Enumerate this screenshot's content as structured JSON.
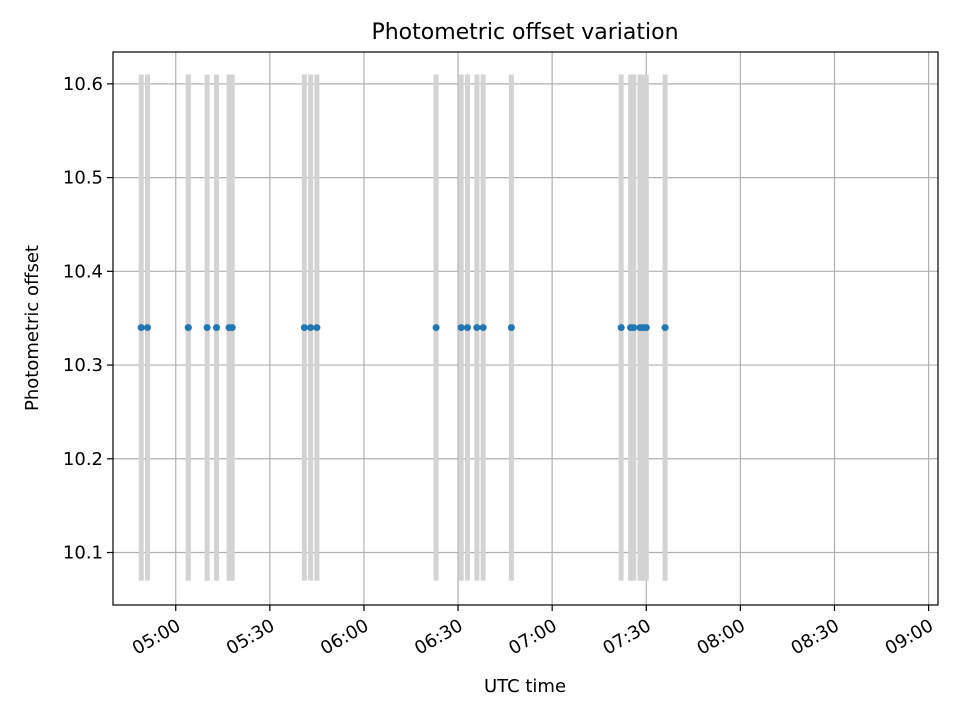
{
  "chart_data": {
    "type": "scatter",
    "title": "Photometric offset variation",
    "xlabel": "UTC time",
    "ylabel": "Photometric offset",
    "xlim": [
      "04:40",
      "09:03"
    ],
    "ylim": [
      10.044,
      10.634
    ],
    "x_ticks": [
      "05:00",
      "05:30",
      "06:00",
      "06:30",
      "07:00",
      "07:30",
      "08:00",
      "08:30",
      "09:00"
    ],
    "y_ticks": [
      10.1,
      10.2,
      10.3,
      10.4,
      10.5,
      10.6
    ],
    "grid": true,
    "error_bar_range": [
      10.07,
      10.61
    ],
    "series": [
      {
        "x": [
          "04:49",
          "04:51",
          "05:04",
          "05:04",
          "05:10",
          "05:13",
          "05:17",
          "05:18",
          "05:41",
          "05:43",
          "05:45",
          "06:23",
          "06:31",
          "06:33",
          "06:36",
          "06:38",
          "06:47",
          "07:22",
          "07:25",
          "07:26",
          "07:28",
          "07:29",
          "07:30",
          "07:36"
        ],
        "y": [
          10.34,
          10.34,
          10.34,
          10.34,
          10.34,
          10.34,
          10.34,
          10.34,
          10.34,
          10.34,
          10.34,
          10.34,
          10.34,
          10.34,
          10.34,
          10.34,
          10.34,
          10.34,
          10.34,
          10.34,
          10.34,
          10.34,
          10.34,
          10.34
        ]
      }
    ],
    "colors": {
      "points": "#1f77b4",
      "error_bars": "#d3d3d3",
      "grid": "#b0b0b0"
    }
  }
}
